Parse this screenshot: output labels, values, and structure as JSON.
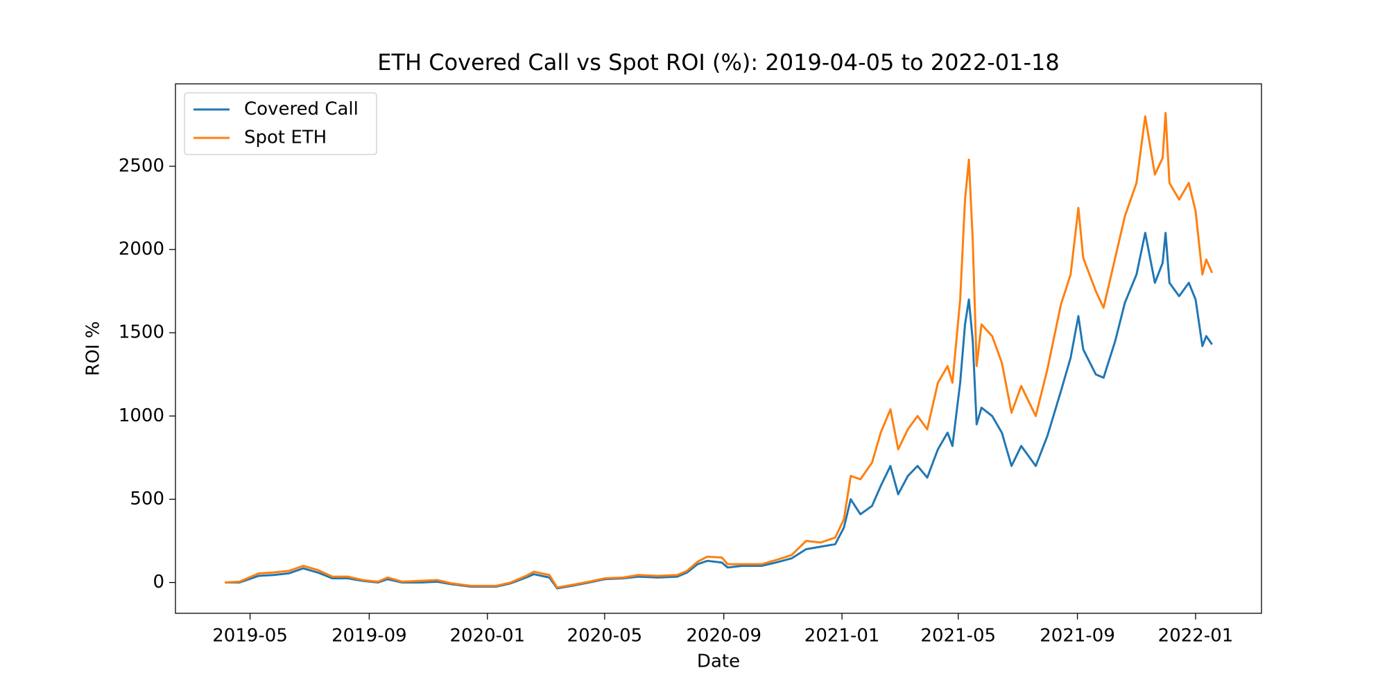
{
  "chart_data": {
    "type": "line",
    "title": "ETH Covered Call vs Spot ROI (%): 2019-04-05 to 2022-01-18",
    "x_label": "Date",
    "y_label": "ROI %",
    "x": [
      "2019-04-05",
      "2019-04-20",
      "2019-05-10",
      "2019-05-25",
      "2019-06-10",
      "2019-06-25",
      "2019-07-10",
      "2019-07-25",
      "2019-08-10",
      "2019-08-25",
      "2019-09-10",
      "2019-09-20",
      "2019-10-05",
      "2019-10-25",
      "2019-11-10",
      "2019-11-25",
      "2019-12-15",
      "2020-01-10",
      "2020-01-25",
      "2020-02-10",
      "2020-02-18",
      "2020-03-05",
      "2020-03-13",
      "2020-03-28",
      "2020-04-15",
      "2020-05-01",
      "2020-05-20",
      "2020-06-05",
      "2020-06-25",
      "2020-07-15",
      "2020-07-25",
      "2020-08-05",
      "2020-08-15",
      "2020-08-30",
      "2020-09-05",
      "2020-09-20",
      "2020-10-10",
      "2020-10-25",
      "2020-11-10",
      "2020-11-25",
      "2020-12-10",
      "2020-12-25",
      "2021-01-03",
      "2021-01-10",
      "2021-01-20",
      "2021-02-01",
      "2021-02-10",
      "2021-02-20",
      "2021-02-28",
      "2021-03-10",
      "2021-03-20",
      "2021-03-30",
      "2021-04-10",
      "2021-04-20",
      "2021-04-25",
      "2021-05-03",
      "2021-05-08",
      "2021-05-12",
      "2021-05-16",
      "2021-05-20",
      "2021-05-25",
      "2021-06-05",
      "2021-06-15",
      "2021-06-25",
      "2021-07-05",
      "2021-07-20",
      "2021-08-01",
      "2021-08-15",
      "2021-08-25",
      "2021-09-02",
      "2021-09-07",
      "2021-09-20",
      "2021-09-28",
      "2021-10-10",
      "2021-10-20",
      "2021-11-01",
      "2021-11-10",
      "2021-11-20",
      "2021-11-28",
      "2021-12-01",
      "2021-12-05",
      "2021-12-15",
      "2021-12-25",
      "2022-01-01",
      "2022-01-08",
      "2022-01-12",
      "2022-01-18"
    ],
    "series": [
      {
        "name": "Covered Call",
        "color": "#1f77b4",
        "values": [
          0,
          0,
          40,
          45,
          55,
          85,
          60,
          25,
          25,
          10,
          0,
          20,
          0,
          0,
          5,
          -10,
          -25,
          -25,
          -5,
          30,
          50,
          30,
          -35,
          -20,
          0,
          20,
          25,
          35,
          30,
          35,
          60,
          110,
          130,
          120,
          90,
          100,
          100,
          120,
          145,
          200,
          215,
          230,
          330,
          500,
          410,
          460,
          580,
          700,
          530,
          640,
          700,
          630,
          800,
          900,
          820,
          1200,
          1550,
          1700,
          1450,
          950,
          1050,
          1000,
          900,
          700,
          820,
          700,
          880,
          1150,
          1350,
          1600,
          1400,
          1250,
          1230,
          1450,
          1680,
          1850,
          2100,
          1800,
          1920,
          2100,
          1800,
          1720,
          1800,
          1700,
          1420,
          1480,
          1430
        ]
      },
      {
        "name": "Spot ETH",
        "color": "#ff7f0e",
        "values": [
          0,
          5,
          55,
          60,
          70,
          100,
          75,
          35,
          35,
          15,
          5,
          30,
          5,
          10,
          15,
          -5,
          -20,
          -20,
          0,
          40,
          65,
          45,
          -30,
          -15,
          5,
          25,
          30,
          45,
          40,
          45,
          70,
          125,
          155,
          150,
          110,
          110,
          110,
          135,
          165,
          250,
          240,
          270,
          380,
          640,
          620,
          720,
          900,
          1040,
          800,
          920,
          1000,
          920,
          1200,
          1300,
          1200,
          1700,
          2300,
          2540,
          2050,
          1300,
          1550,
          1480,
          1320,
          1020,
          1180,
          1000,
          1280,
          1670,
          1850,
          2250,
          1950,
          1750,
          1650,
          1950,
          2200,
          2400,
          2800,
          2450,
          2550,
          2820,
          2400,
          2300,
          2400,
          2230,
          1850,
          1940,
          1860
        ]
      }
    ],
    "xlim": [
      "2019-02-13",
      "2022-03-10"
    ],
    "xticks": [
      "2019-05",
      "2019-09",
      "2020-01",
      "2020-05",
      "2020-09",
      "2021-01",
      "2021-05",
      "2021-09",
      "2022-01"
    ],
    "ylim": [
      -185,
      2995
    ],
    "yticks": [
      0,
      500,
      1000,
      1500,
      2000,
      2500
    ],
    "grid": false,
    "legend": "upper left"
  }
}
